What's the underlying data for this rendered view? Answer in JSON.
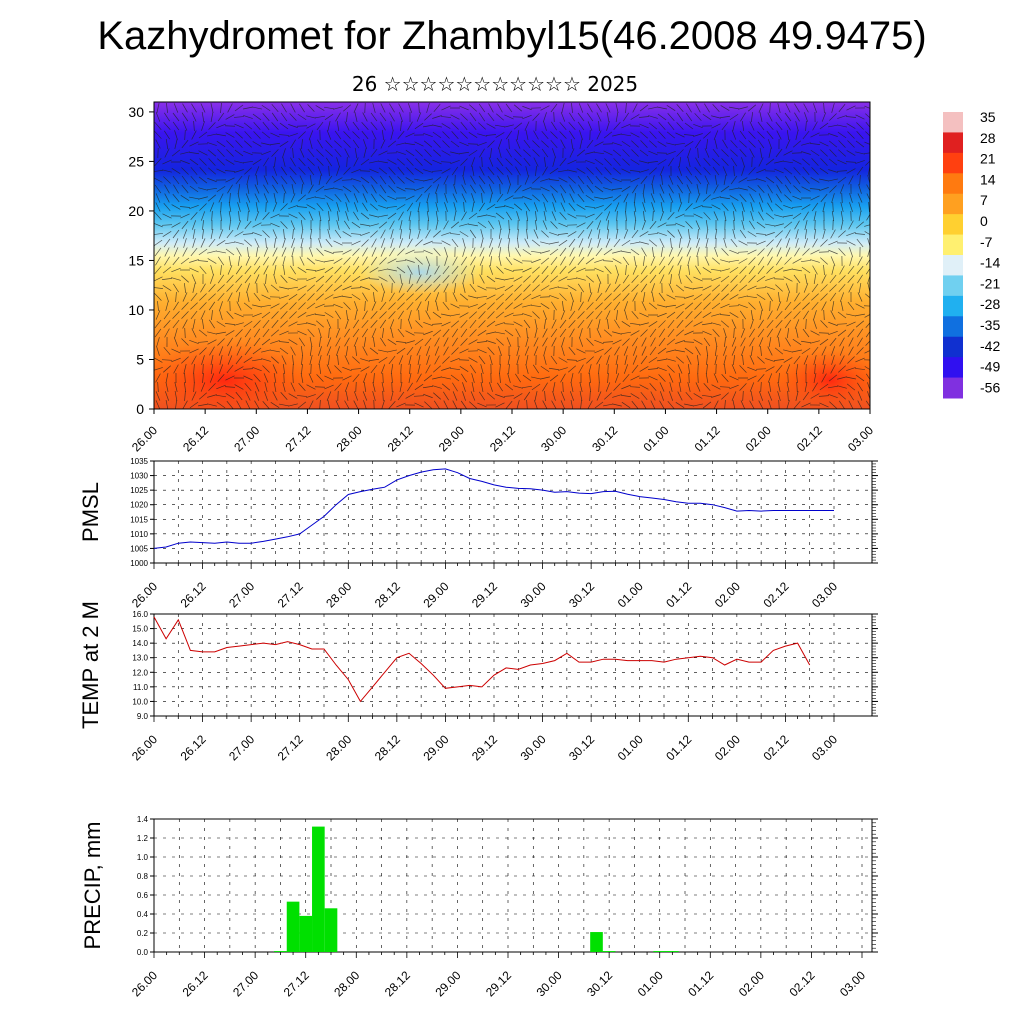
{
  "title": "Kazhydromet for Zhambyl15(46.2008 49.9475)",
  "subtitle": "26 ☆☆☆☆☆☆☆☆☆☆☆ 2025",
  "time_ticks": [
    "26.00",
    "26.12",
    "27.00",
    "27.12",
    "28.00",
    "28.12",
    "29.00",
    "29.12",
    "30.00",
    "30.12",
    "01.00",
    "01.12",
    "02.00",
    "02.12",
    "03.00"
  ],
  "colorbar": {
    "labels": [
      "35",
      "28",
      "21",
      "14",
      "7",
      "0",
      "-7",
      "-14",
      "-21",
      "-28",
      "-35",
      "-42",
      "-49",
      "-56"
    ],
    "colors": [
      "#f4c0c0",
      "#e02020",
      "#ff4010",
      "#ff7a10",
      "#ffa020",
      "#ffd030",
      "#fff070",
      "#e0f0f8",
      "#70d0f0",
      "#20b0f0",
      "#1070e0",
      "#1030d0",
      "#3010f0",
      "#8030e0"
    ]
  },
  "chart_data": [
    {
      "type": "heatmap",
      "title": "",
      "xlabel": "",
      "ylabel": "",
      "x_ticks": [
        "26.00",
        "26.12",
        "27.00",
        "27.12",
        "28.00",
        "28.12",
        "29.00",
        "29.12",
        "30.00",
        "30.12",
        "01.00",
        "01.12",
        "02.00",
        "02.12",
        "03.00"
      ],
      "ylim": [
        0,
        31
      ],
      "y_ticks": [
        0,
        5,
        10,
        15,
        20,
        25,
        30
      ],
      "colorbar_range": [
        -56,
        35
      ],
      "description_levels": [
        {
          "level_range": [
            0,
            5
          ],
          "value": 24
        },
        {
          "level_range": [
            5,
            12
          ],
          "value": 12
        },
        {
          "level_range": [
            12,
            16
          ],
          "value": -6
        },
        {
          "level_range": [
            16,
            20
          ],
          "value": -30
        },
        {
          "level_range": [
            20,
            26
          ],
          "value": -52
        },
        {
          "level_range": [
            26,
            31
          ],
          "value": -56
        }
      ]
    },
    {
      "type": "line",
      "title": "",
      "xlabel": "",
      "ylabel": "PMSL",
      "ylim": [
        1000,
        1035
      ],
      "y_ticks": [
        1000,
        1005,
        1010,
        1015,
        1020,
        1025,
        1030,
        1035
      ],
      "x_ticks": [
        "26.00",
        "26.12",
        "27.00",
        "27.12",
        "28.00",
        "28.12",
        "29.00",
        "29.12",
        "30.00",
        "30.12",
        "01.00",
        "01.12",
        "02.00",
        "02.12",
        "03.00"
      ],
      "series": [
        {
          "name": "",
          "color": "#0000cc",
          "x": [
            0,
            3,
            6,
            9,
            12,
            15,
            18,
            21,
            24,
            27,
            30,
            33,
            36,
            39,
            42,
            45,
            48,
            51,
            54,
            57,
            60,
            63,
            66,
            69,
            72,
            75,
            78,
            81,
            84,
            87,
            90,
            93,
            96,
            99,
            102,
            105,
            108,
            111,
            114,
            117,
            120,
            123,
            126,
            129,
            132,
            135,
            138,
            141,
            144,
            147,
            150,
            153,
            156,
            159,
            162,
            165,
            168
          ],
          "values": [
            1005,
            1005.5,
            1006.8,
            1007.2,
            1007.0,
            1006.8,
            1007.2,
            1006.8,
            1006.8,
            1007.4,
            1008.2,
            1009.0,
            1010.0,
            1013.0,
            1016.0,
            1020.0,
            1023.5,
            1024.5,
            1025.3,
            1026.0,
            1028.5,
            1030.0,
            1031.2,
            1032.0,
            1032.3,
            1031.0,
            1029.0,
            1028.0,
            1026.8,
            1026.0,
            1025.6,
            1025.5,
            1025.0,
            1024.3,
            1024.5,
            1024.0,
            1023.8,
            1024.5,
            1024.6,
            1023.6,
            1022.8,
            1022.3,
            1021.8,
            1021.0,
            1020.5,
            1020.5,
            1020.0,
            1019.0,
            1017.8,
            1018.0,
            1017.8,
            1018.0,
            1018.0,
            1018.0,
            1018.0,
            1018.0,
            1018.0
          ]
        }
      ]
    },
    {
      "type": "line",
      "title": "",
      "xlabel": "",
      "ylabel": "TEMP at 2 M",
      "ylim": [
        9.0,
        16.0
      ],
      "y_ticks": [
        "9.0",
        "10.0",
        "11.0",
        "12.0",
        "13.0",
        "14.0",
        "15.0",
        "16.0"
      ],
      "x_ticks": [
        "26.00",
        "26.12",
        "27.00",
        "27.12",
        "28.00",
        "28.12",
        "29.00",
        "29.12",
        "30.00",
        "30.12",
        "01.00",
        "01.12",
        "02.00",
        "02.12",
        "03.00"
      ],
      "series": [
        {
          "name": "",
          "color": "#cc0000",
          "x": [
            0,
            3,
            6,
            9,
            12,
            15,
            18,
            21,
            24,
            27,
            30,
            33,
            36,
            39,
            42,
            45,
            48,
            51,
            54,
            57,
            60,
            63,
            66,
            69,
            72,
            75,
            78,
            81,
            84,
            87,
            90,
            93,
            96,
            99,
            102,
            105,
            108,
            111,
            114,
            117,
            120,
            123,
            126,
            129,
            132,
            135,
            138,
            141,
            144,
            147,
            150,
            153,
            156,
            159,
            162
          ],
          "values": [
            15.8,
            14.3,
            15.6,
            13.5,
            13.4,
            13.4,
            13.7,
            13.8,
            13.9,
            14.0,
            13.9,
            14.1,
            13.9,
            13.6,
            13.6,
            12.5,
            11.5,
            10.0,
            11.0,
            12.0,
            13.0,
            13.3,
            12.6,
            11.8,
            10.9,
            11.0,
            11.1,
            11.0,
            11.8,
            12.3,
            12.2,
            12.5,
            12.6,
            12.8,
            13.3,
            12.7,
            12.7,
            12.9,
            12.9,
            12.8,
            12.8,
            12.8,
            12.7,
            12.9,
            13.0,
            13.1,
            13.0,
            12.5,
            12.9,
            12.7,
            12.7,
            13.5,
            13.8,
            14.0,
            12.5
          ]
        }
      ]
    },
    {
      "type": "bar",
      "title": "",
      "xlabel": "",
      "ylabel": "PRECIP, mm",
      "ylim": [
        0.0,
        1.4
      ],
      "y_ticks": [
        "0.0",
        "0.2",
        "0.4",
        "0.6",
        "0.8",
        "1.0",
        "1.2",
        "1.4"
      ],
      "x_ticks": [
        "26.00",
        "26.12",
        "27.00",
        "27.12",
        "28.00",
        "28.12",
        "29.00",
        "29.12",
        "30.00",
        "30.12",
        "01.00",
        "01.12",
        "02.00",
        "02.12",
        "03.00"
      ],
      "bar_hours": 3,
      "color": "#00e000",
      "bars": [
        {
          "x": 30,
          "value": 0.01
        },
        {
          "x": 33,
          "value": 0.53
        },
        {
          "x": 36,
          "value": 0.38
        },
        {
          "x": 39,
          "value": 1.32
        },
        {
          "x": 42,
          "value": 0.46
        },
        {
          "x": 105,
          "value": 0.21
        },
        {
          "x": 108,
          "value": 0.01
        },
        {
          "x": 120,
          "value": 0.01
        },
        {
          "x": 123,
          "value": 0.01
        }
      ]
    }
  ]
}
